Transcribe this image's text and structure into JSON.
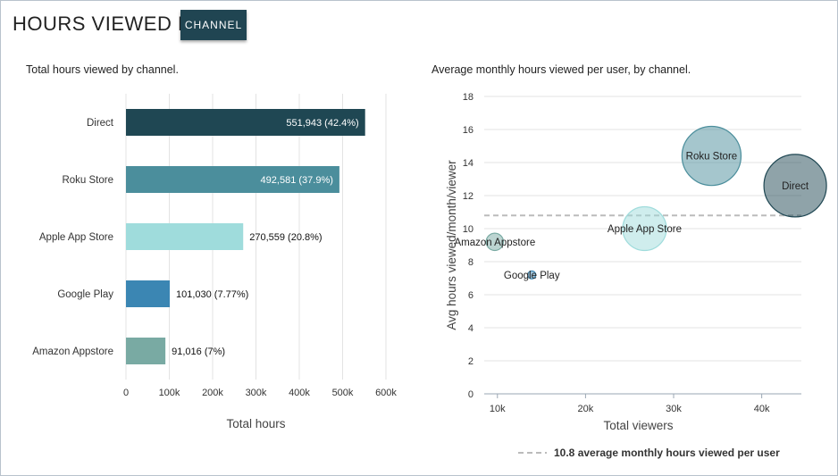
{
  "header": {
    "title": "HOURS VIEWED BY",
    "dimension_button": "CHANNEL"
  },
  "colors": {
    "direct": "#1f4753",
    "roku": "#4b8e9c",
    "apple": "#9fdcdc",
    "google": "#3b86b3",
    "amazon": "#79aaa3",
    "grid": "#e3e3e3",
    "avg_line": "#bbbbbb"
  },
  "chart_data": [
    {
      "type": "bar",
      "orientation": "horizontal",
      "title": "Total hours viewed by channel.",
      "xlabel": "Total hours",
      "xlim": [
        0,
        600000
      ],
      "xticks": [
        "0",
        "100k",
        "200k",
        "300k",
        "400k",
        "500k",
        "600k"
      ],
      "grid": true,
      "categories": [
        "Direct",
        "Roku Store",
        "Apple App Store",
        "Google Play",
        "Amazon Appstore"
      ],
      "values": [
        551943,
        492581,
        270559,
        101030,
        91016
      ],
      "data_labels": [
        "551,943 (42.4%)",
        "492,581 (37.9%)",
        "270,559 (20.8%)",
        "101,030 (7.77%)",
        "91,016 (7%)"
      ],
      "colors": [
        "#1f4753",
        "#4b8e9c",
        "#9fdcdc",
        "#3b86b3",
        "#79aaa3"
      ]
    },
    {
      "type": "scatter",
      "subtype": "bubble",
      "title": "Average monthly hours viewed per user, by channel.",
      "xlabel": "Total viewers",
      "ylabel": "Avg hours viewed/month/viewer",
      "xlim": [
        8500,
        44500
      ],
      "ylim": [
        0,
        18
      ],
      "xticks": [
        10000,
        20000,
        30000,
        40000
      ],
      "xtick_labels": [
        "10k",
        "20k",
        "30k",
        "40k"
      ],
      "yticks": [
        0,
        2,
        4,
        6,
        8,
        10,
        12,
        14,
        16,
        18
      ],
      "grid": true,
      "points": [
        {
          "name": "Direct",
          "x": 43800,
          "y": 12.6,
          "size": 551943,
          "color": "#1f4753"
        },
        {
          "name": "Roku Store",
          "x": 34300,
          "y": 14.4,
          "size": 492581,
          "color": "#4b8e9c"
        },
        {
          "name": "Apple App Store",
          "x": 26700,
          "y": 10.0,
          "size": 270559,
          "color": "#9fdcdc"
        },
        {
          "name": "Amazon Appstore",
          "x": 9700,
          "y": 9.2,
          "size": 91016,
          "color": "#79aaa3"
        },
        {
          "name": "Google Play",
          "x": 13900,
          "y": 7.2,
          "size": 101030,
          "color": "#3b86b3"
        }
      ],
      "reference_line": {
        "y": 10.8,
        "label": "10.8 average monthly hours viewed per user"
      },
      "legend_position": "bottom"
    }
  ]
}
